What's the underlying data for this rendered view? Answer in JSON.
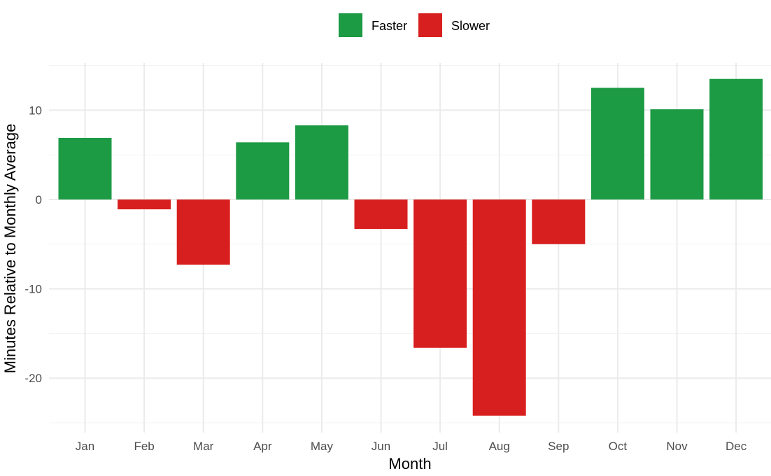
{
  "chart_data": {
    "type": "bar",
    "xlabel": "Month",
    "ylabel": "Minutes Relative to Monthly Average",
    "categories": [
      "Jan",
      "Feb",
      "Mar",
      "Apr",
      "May",
      "Jun",
      "Jul",
      "Aug",
      "Sep",
      "Oct",
      "Nov",
      "Dec"
    ],
    "values": [
      6.9,
      -1.1,
      -7.3,
      6.4,
      8.3,
      -3.3,
      -16.6,
      -24.2,
      -5.0,
      12.5,
      10.1,
      13.5
    ],
    "groups": [
      "Faster",
      "Slower",
      "Slower",
      "Faster",
      "Faster",
      "Slower",
      "Slower",
      "Slower",
      "Slower",
      "Faster",
      "Faster",
      "Faster"
    ],
    "ylim": [
      -25,
      15
    ],
    "yticks": [
      -20,
      -10,
      0,
      10
    ],
    "grid": true,
    "legend": {
      "position": "top",
      "entries": [
        {
          "name": "Faster",
          "color": "#1d9a44"
        },
        {
          "name": "Slower",
          "color": "#d81f1f"
        }
      ]
    }
  }
}
